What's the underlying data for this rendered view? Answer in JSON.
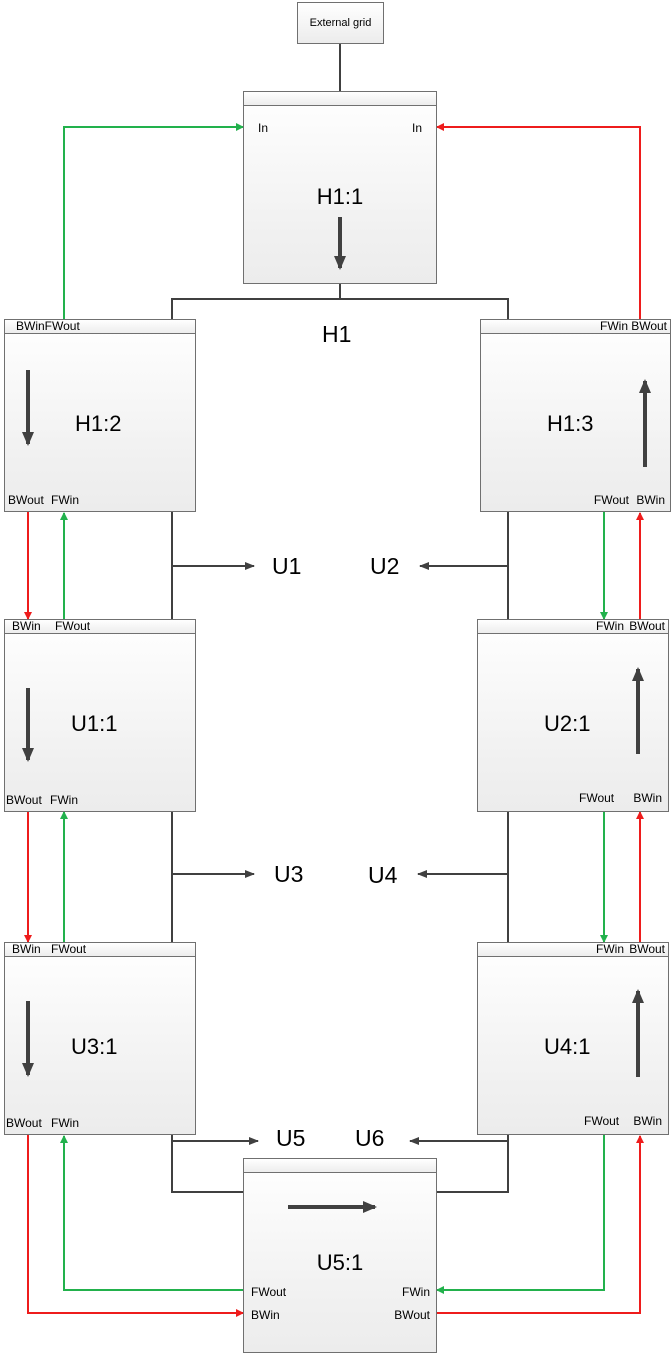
{
  "external_grid": "External grid",
  "buses": {
    "h1": "H1",
    "u1": "U1",
    "u2": "U2",
    "u3": "U3",
    "u4": "U4",
    "u5": "U5",
    "u6": "U6"
  },
  "colors": {
    "forward": "#22b14c",
    "backward": "#ee1c1c",
    "wire": "#404040",
    "arrow": "#404040"
  },
  "nodes": {
    "h1_1": {
      "title": "H1:1",
      "in_left": "In",
      "in_right": "In"
    },
    "h1_2": {
      "title": "H1:2",
      "top": "BWinFWout",
      "bot_left": "BWout",
      "bot_right": "FWin"
    },
    "h1_3": {
      "title": "H1:3",
      "top_left": "FWin",
      "top_right": "BWout",
      "bot_left": "FWout",
      "bot_right": "BWin"
    },
    "u1_1": {
      "title": "U1:1",
      "top_left": "BWin",
      "top_right": "FWout",
      "bot_left": "BWout",
      "bot_right": "FWin"
    },
    "u2_1": {
      "title": "U2:1",
      "top_left": "FWin",
      "top_right": "BWout",
      "bot_left": "FWout",
      "bot_right": "BWin"
    },
    "u3_1": {
      "title": "U3:1",
      "top_left": "BWin",
      "top_right": "FWout",
      "bot_left": "BWout",
      "bot_right": "FWin"
    },
    "u4_1": {
      "title": "U4:1",
      "top_left": "FWin",
      "top_right": "BWout",
      "bot_left": "FWout",
      "bot_right": "BWin"
    },
    "u5_1": {
      "title": "U5:1",
      "left_top": "FWout",
      "left_bot": "BWin",
      "right_top": "FWin",
      "right_bot": "BWout"
    }
  }
}
